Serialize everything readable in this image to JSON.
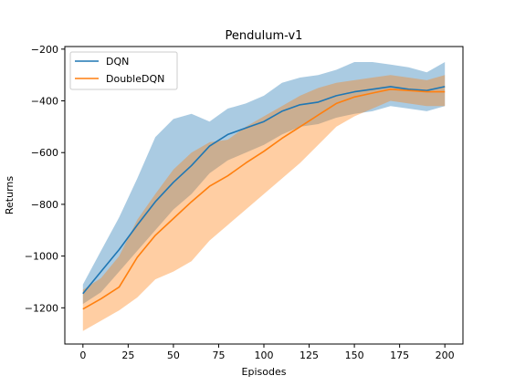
{
  "chart_data": {
    "type": "line",
    "title": "Pendulum-v1",
    "xlabel": "Episodes",
    "ylabel": "Returns",
    "xlim": [
      -10,
      210
    ],
    "ylim": [
      -1340,
      -190
    ],
    "xticks": [
      0,
      25,
      50,
      75,
      100,
      125,
      150,
      175,
      200
    ],
    "yticks": [
      -1200,
      -1000,
      -800,
      -600,
      -400,
      -200
    ],
    "grid": false,
    "legend_position": "top-left",
    "x": [
      0,
      10,
      20,
      30,
      40,
      50,
      60,
      70,
      80,
      90,
      100,
      110,
      120,
      130,
      140,
      150,
      160,
      170,
      180,
      190,
      200
    ],
    "series": [
      {
        "name": "DQN",
        "color": "#1f77b4",
        "band_color": "#1f77b4",
        "values": [
          -1145,
          -1060,
          -975,
          -880,
          -790,
          -715,
          -650,
          -575,
          -530,
          -505,
          -480,
          -440,
          -415,
          -405,
          -380,
          -365,
          -355,
          -345,
          -355,
          -360,
          -345
        ],
        "lower": [
          -1185,
          -1140,
          -1060,
          -980,
          -900,
          -820,
          -760,
          -680,
          -630,
          -600,
          -570,
          -530,
          -500,
          -490,
          -465,
          -450,
          -440,
          -420,
          -430,
          -440,
          -420
        ],
        "upper": [
          -1110,
          -980,
          -850,
          -700,
          -540,
          -470,
          -450,
          -480,
          -430,
          -410,
          -380,
          -330,
          -310,
          -300,
          -280,
          -250,
          -250,
          -260,
          -270,
          -290,
          -250
        ]
      },
      {
        "name": "DoubleDQN",
        "color": "#ff7f0e",
        "band_color": "#ff7f0e",
        "values": [
          -1205,
          -1165,
          -1120,
          -1005,
          -920,
          -855,
          -790,
          -730,
          -690,
          -640,
          -595,
          -545,
          -500,
          -455,
          -410,
          -385,
          -370,
          -355,
          -360,
          -365,
          -365
        ],
        "lower": [
          -1290,
          -1250,
          -1210,
          -1160,
          -1090,
          -1060,
          -1020,
          -940,
          -880,
          -820,
          -760,
          -700,
          -640,
          -570,
          -500,
          -460,
          -430,
          -400,
          -410,
          -420,
          -420
        ],
        "upper": [
          -1130,
          -1085,
          -1000,
          -860,
          -760,
          -665,
          -600,
          -560,
          -550,
          -500,
          -460,
          -420,
          -380,
          -350,
          -330,
          -320,
          -310,
          -300,
          -310,
          -320,
          -300
        ]
      }
    ]
  }
}
